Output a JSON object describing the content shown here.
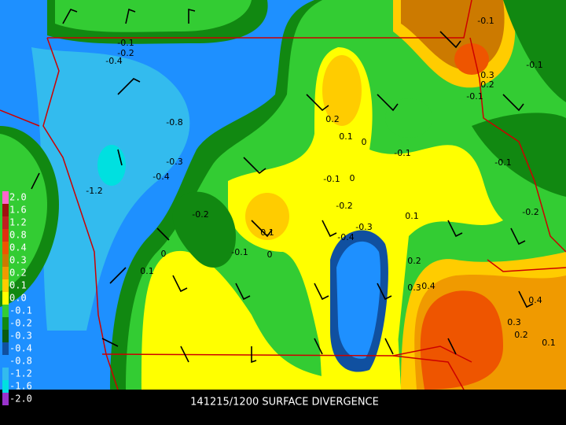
{
  "title": "141215/1200 SURFACE DIVERGENCE",
  "colorbar": {
    "labels": [
      "2.0",
      "1.6",
      "1.2",
      "0.8",
      "0.4",
      "0.3",
      "0.2",
      "0.1",
      "0.0",
      "-0.1",
      "-0.2",
      "-0.3",
      "-0.4",
      "-0.8",
      "-1.2",
      "-1.6",
      "-2.0"
    ],
    "colors": [
      "#ff66cc",
      "#a01010",
      "#c02020",
      "#e03010",
      "#ee5500",
      "#cc7a00",
      "#f09a00",
      "#ffcc00",
      "#ffff00",
      "#33cc33",
      "#118811",
      "#0a5a10",
      "#1050a0",
      "#1e90ff",
      "#33bbee",
      "#00e0e0",
      "#9933cc"
    ]
  },
  "contour_labels": [
    "-0.1",
    "-0.2",
    "-0.4",
    "-0.8",
    "-1.2",
    "-0.3",
    "-0.4",
    "-0.2",
    "0",
    "0.1",
    "-0.1",
    "0",
    "0.1",
    "0.2",
    "0.1",
    "0",
    "-0.1",
    "0",
    "-0.2",
    "-0.3",
    "-0.4",
    "-0.1",
    "0.1",
    "0.2",
    "0.3",
    "0.4",
    "-0.1",
    "-0.1",
    "0.3",
    "0.2",
    "-0.1",
    "-0.1",
    "-0.2",
    "0.4",
    "0.3",
    "0.2",
    "0.1"
  ]
}
